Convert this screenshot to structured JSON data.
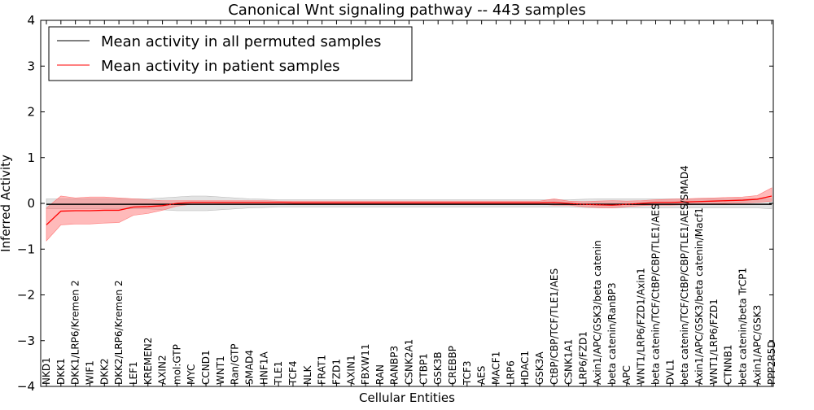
{
  "chart_data": {
    "type": "line",
    "title": "Canonical Wnt signaling pathway -- 443 samples",
    "xlabel": "Cellular Entities",
    "ylabel": "Inferred Activity",
    "ylim": [
      -4,
      4
    ],
    "yticks": [
      -4,
      -3,
      -2,
      -1,
      0,
      1,
      2,
      3,
      4
    ],
    "ytick_labels": [
      "−4",
      "−3",
      "−2",
      "−1",
      "0",
      "1",
      "2",
      "3",
      "4"
    ],
    "legend_position": "top-left",
    "categories": [
      "NKD1",
      "DKK1",
      "DKK1/LRP6/Kremen 2",
      "WIF1",
      "DKK2",
      "DKK2/LRP6/Kremen 2",
      "LEF1",
      "KREMEN2",
      "AXIN2",
      "mol:GTP",
      "MYC",
      "CCND1",
      "WNT1",
      "Ran/GTP",
      "SMAD4",
      "HNF1A",
      "TLE1",
      "TCF4",
      "NLK",
      "FRAT1",
      "FZD1",
      "AXIN1",
      "FBXW11",
      "RAN",
      "RANBP3",
      "CSNK2A1",
      "CTBP1",
      "GSK3B",
      "CREBBP",
      "TCF3",
      "AES",
      "MACF1",
      "LRP6",
      "HDAC1",
      "GSK3A",
      "CtBP/CBP/TCF/TLE1/AES",
      "CSNK1A1",
      "LRP6/FZD1",
      "Axin1/APC/GSK3/beta catenin",
      "beta catenin/RanBP3",
      "APC",
      "WNT1/LRP6/FZD1/Axin1",
      "beta catenin/TCF/CtBP/CBP/TLE1/AES",
      "DVL1",
      "beta catenin/TCF/CtBP/CBP/TLE1/AES/SMAD4",
      "Axin1/APC/GSK3/beta catenin/Macf1",
      "WNT1/LRP6/FZD1",
      "CTNNB1",
      "beta catenin/beta TrCP1",
      "Axin1/APC/GSK3",
      "PPP2R5D"
    ],
    "series": [
      {
        "name": "Mean activity in all permuted samples",
        "color": "#000000",
        "values": [
          -0.02,
          -0.02,
          -0.02,
          -0.02,
          -0.02,
          -0.02,
          -0.02,
          -0.02,
          -0.02,
          -0.02,
          -0.02,
          -0.02,
          -0.02,
          -0.02,
          -0.02,
          -0.02,
          -0.02,
          -0.02,
          -0.02,
          -0.02,
          -0.02,
          -0.02,
          -0.02,
          -0.02,
          -0.02,
          -0.02,
          -0.02,
          -0.02,
          -0.02,
          -0.02,
          -0.02,
          -0.02,
          -0.02,
          -0.02,
          -0.02,
          -0.02,
          -0.02,
          -0.02,
          -0.02,
          -0.02,
          -0.02,
          -0.02,
          -0.02,
          -0.02,
          -0.02,
          -0.02,
          -0.02,
          -0.02,
          -0.02,
          -0.02,
          -0.02
        ],
        "lower": [
          -0.12,
          -0.12,
          -0.12,
          -0.12,
          -0.12,
          -0.12,
          -0.12,
          -0.12,
          -0.14,
          -0.16,
          -0.16,
          -0.16,
          -0.14,
          -0.12,
          -0.1,
          -0.09,
          -0.08,
          -0.08,
          -0.08,
          -0.08,
          -0.08,
          -0.08,
          -0.08,
          -0.08,
          -0.08,
          -0.08,
          -0.08,
          -0.08,
          -0.08,
          -0.08,
          -0.08,
          -0.08,
          -0.08,
          -0.08,
          -0.08,
          -0.08,
          -0.08,
          -0.09,
          -0.1,
          -0.1,
          -0.1,
          -0.1,
          -0.1,
          -0.1,
          -0.1,
          -0.1,
          -0.1,
          -0.1,
          -0.1,
          -0.1,
          -0.12
        ],
        "upper": [
          0.1,
          0.1,
          0.1,
          0.1,
          0.1,
          0.1,
          0.1,
          0.1,
          0.12,
          0.14,
          0.16,
          0.16,
          0.14,
          0.12,
          0.1,
          0.09,
          0.08,
          0.08,
          0.08,
          0.08,
          0.08,
          0.08,
          0.08,
          0.08,
          0.08,
          0.08,
          0.08,
          0.08,
          0.08,
          0.08,
          0.08,
          0.08,
          0.08,
          0.08,
          0.08,
          0.08,
          0.08,
          0.09,
          0.1,
          0.1,
          0.1,
          0.1,
          0.1,
          0.1,
          0.1,
          0.1,
          0.1,
          0.1,
          0.1,
          0.1,
          0.1
        ]
      },
      {
        "name": "Mean activity in patient samples",
        "color": "#ff0000",
        "values": [
          -0.47,
          -0.17,
          -0.16,
          -0.16,
          -0.15,
          -0.15,
          -0.08,
          -0.07,
          -0.05,
          0.0,
          0.02,
          0.02,
          0.02,
          0.02,
          0.02,
          0.02,
          0.02,
          0.01,
          0.01,
          0.01,
          0.01,
          0.01,
          0.01,
          0.01,
          0.01,
          0.01,
          0.01,
          0.01,
          0.01,
          0.01,
          0.01,
          0.01,
          0.01,
          0.01,
          0.01,
          0.02,
          0.0,
          -0.02,
          -0.03,
          -0.04,
          -0.02,
          0.0,
          0.02,
          0.02,
          0.03,
          0.04,
          0.05,
          0.06,
          0.07,
          0.09,
          0.16
        ],
        "lower": [
          -0.82,
          -0.47,
          -0.45,
          -0.45,
          -0.43,
          -0.42,
          -0.26,
          -0.22,
          -0.15,
          -0.06,
          -0.02,
          -0.02,
          -0.01,
          -0.01,
          -0.01,
          -0.01,
          -0.01,
          -0.02,
          -0.02,
          -0.02,
          -0.02,
          -0.02,
          -0.02,
          -0.02,
          -0.02,
          -0.02,
          -0.02,
          -0.02,
          -0.02,
          -0.02,
          -0.02,
          -0.02,
          -0.02,
          -0.02,
          -0.02,
          -0.04,
          -0.04,
          -0.07,
          -0.09,
          -0.1,
          -0.07,
          -0.05,
          -0.04,
          -0.04,
          -0.03,
          -0.02,
          -0.01,
          0.0,
          0.01,
          0.02,
          0.05
        ],
        "upper": [
          -0.1,
          0.16,
          0.12,
          0.14,
          0.14,
          0.12,
          0.1,
          0.08,
          0.06,
          0.06,
          0.06,
          0.06,
          0.06,
          0.06,
          0.06,
          0.06,
          0.05,
          0.05,
          0.05,
          0.05,
          0.05,
          0.05,
          0.05,
          0.05,
          0.05,
          0.05,
          0.05,
          0.05,
          0.05,
          0.05,
          0.05,
          0.05,
          0.05,
          0.05,
          0.05,
          0.1,
          0.05,
          0.04,
          0.05,
          0.06,
          0.05,
          0.06,
          0.08,
          0.09,
          0.1,
          0.11,
          0.12,
          0.13,
          0.14,
          0.17,
          0.34
        ]
      }
    ]
  }
}
